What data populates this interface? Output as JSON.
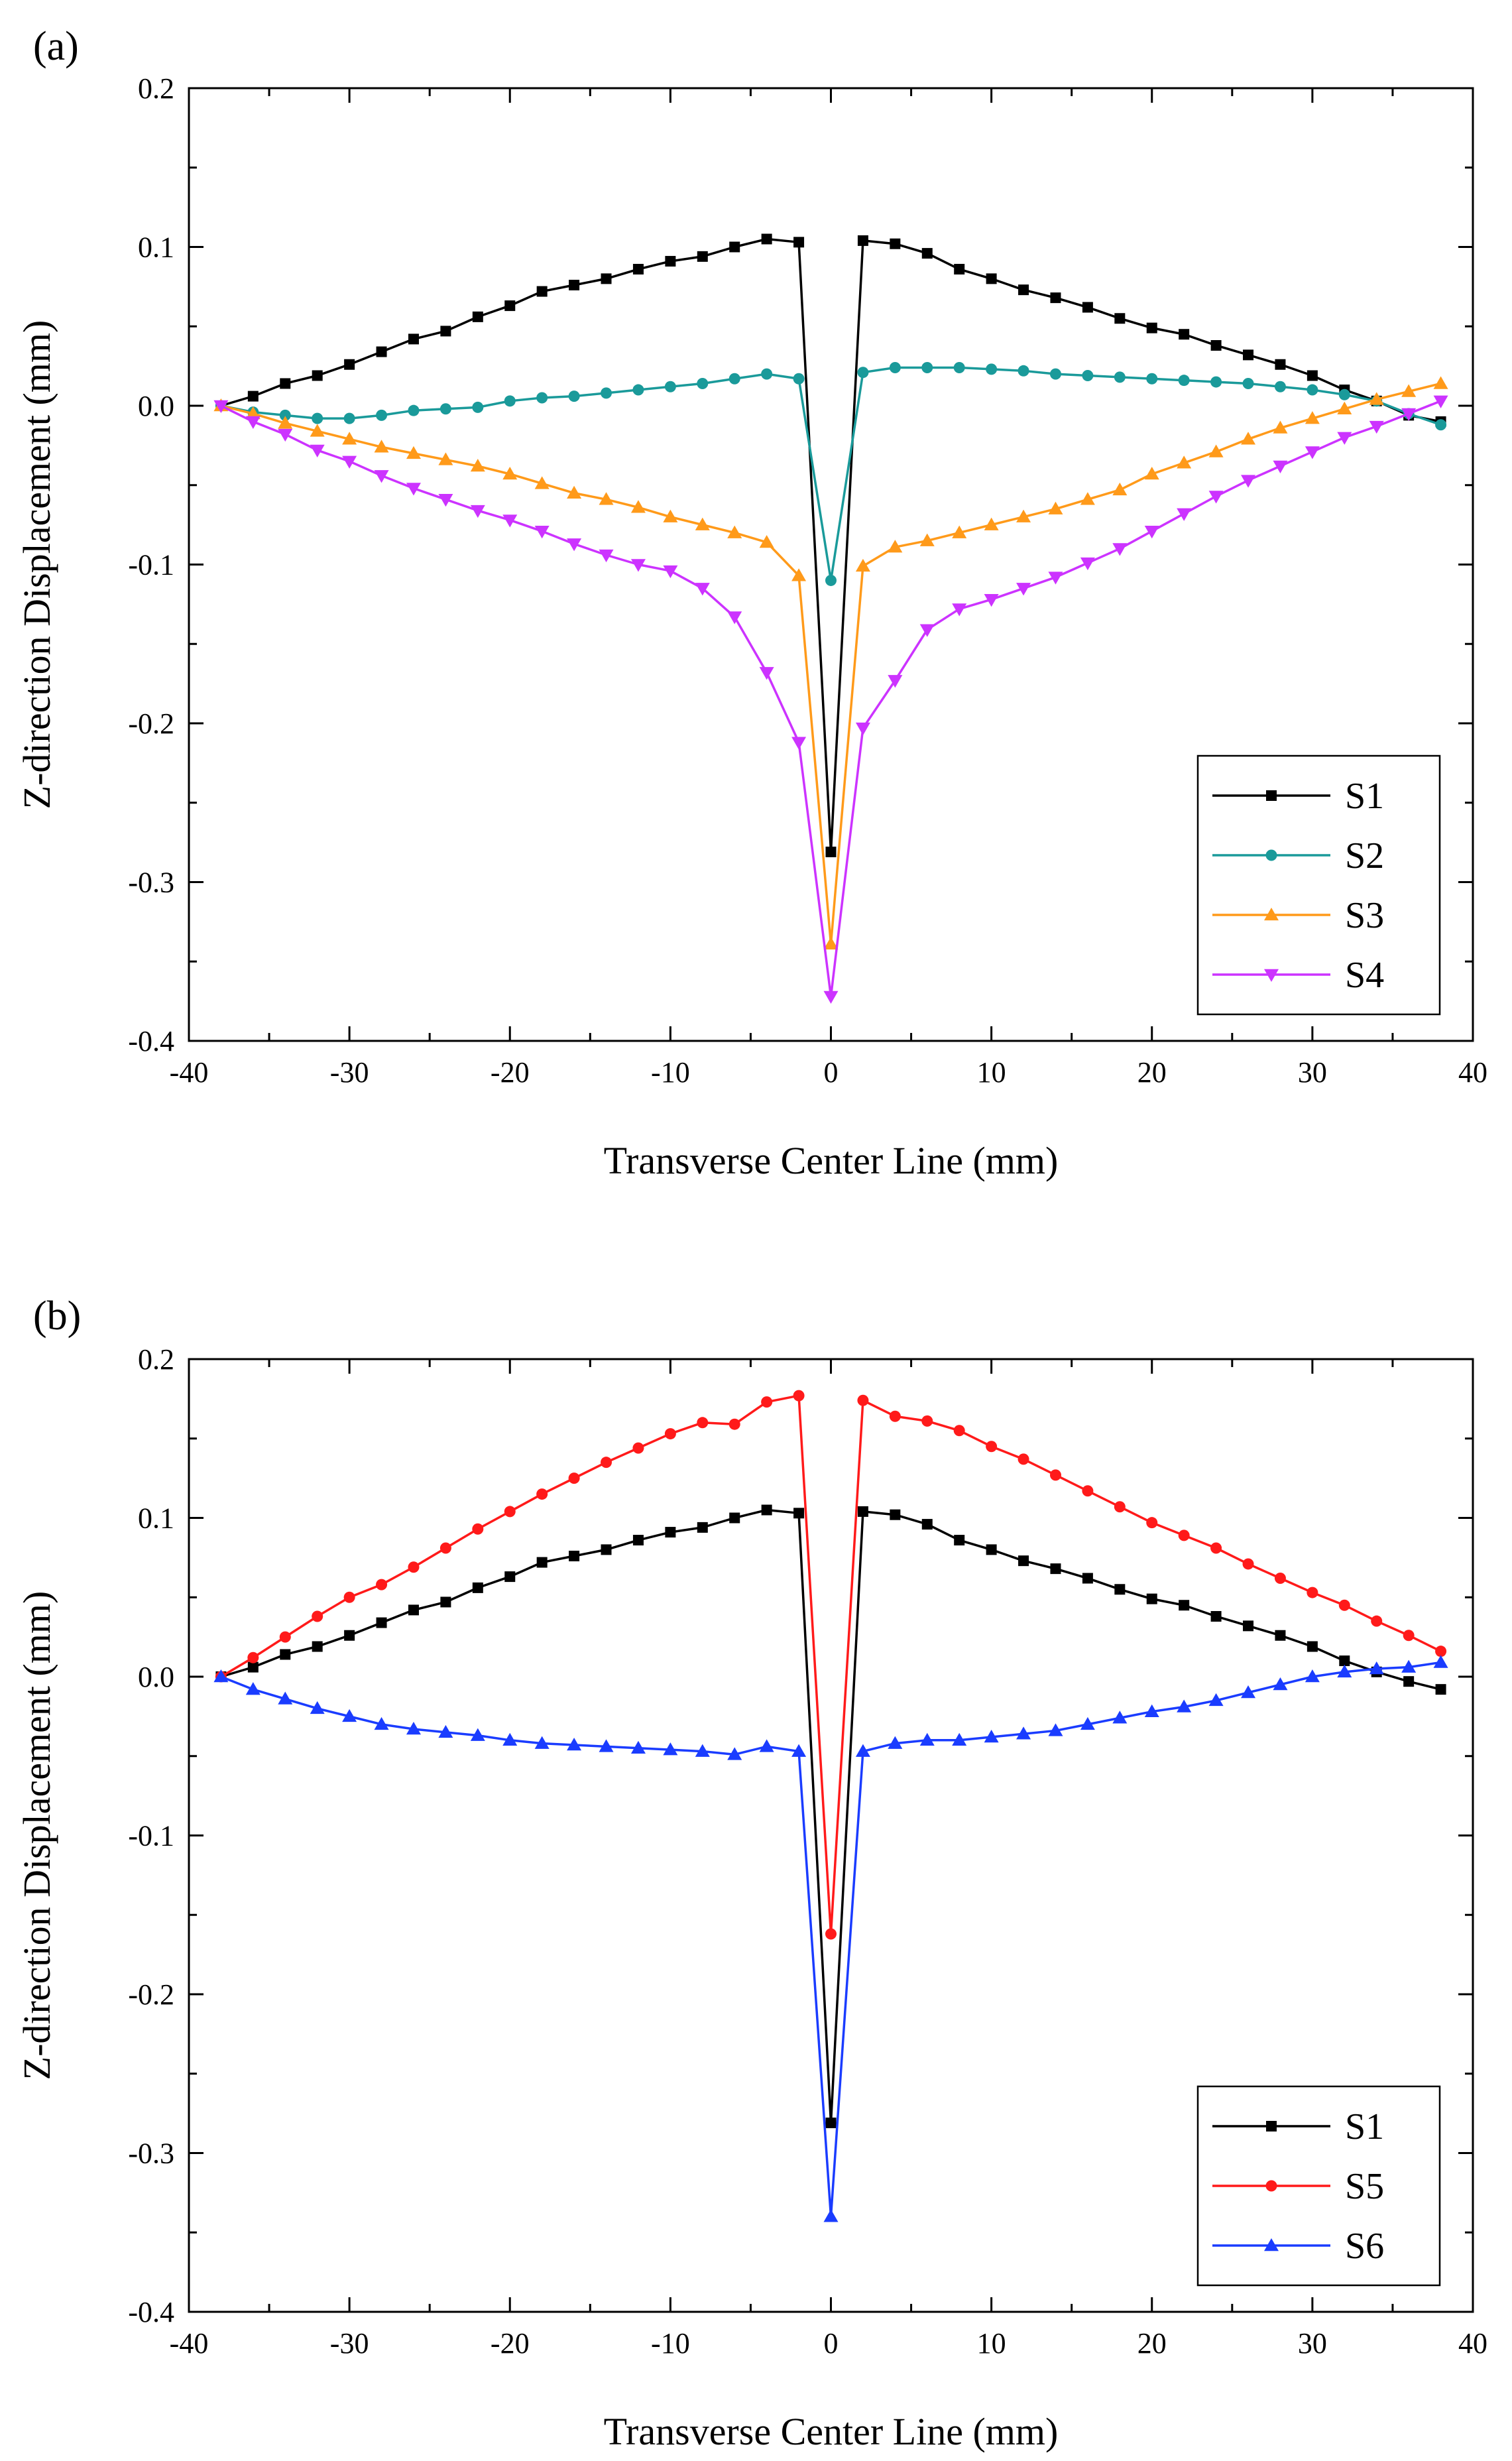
{
  "chart_data": [
    {
      "panel_label": "(a)",
      "type": "line",
      "xlabel": "Transverse Center Line (mm)",
      "ylabel": "Z-direction Displacement (mm)",
      "xlim": [
        -40,
        40
      ],
      "ylim": [
        -0.4,
        0.2
      ],
      "xticks": [
        -40,
        -30,
        -20,
        -10,
        0,
        10,
        20,
        30,
        40
      ],
      "yticks": [
        -0.4,
        -0.3,
        -0.2,
        -0.1,
        0.0,
        0.1,
        0.2
      ],
      "grid": false,
      "legend_position": "lower-right",
      "series": [
        {
          "name": "S1",
          "color": "#000000",
          "marker": "square",
          "x": [
            -38,
            -36,
            -34,
            -32,
            -30,
            -28,
            -26,
            -24,
            -22,
            -20,
            -18,
            -16,
            -14,
            -12,
            -10,
            -8,
            -6,
            -4,
            -2,
            0,
            2,
            4,
            6,
            8,
            10,
            12,
            14,
            16,
            18,
            20,
            22,
            24,
            26,
            28,
            30,
            32,
            34,
            36,
            38
          ],
          "y": [
            0.0,
            0.006,
            0.014,
            0.019,
            0.026,
            0.034,
            0.042,
            0.047,
            0.056,
            0.063,
            0.072,
            0.076,
            0.08,
            0.086,
            0.091,
            0.094,
            0.1,
            0.105,
            0.103,
            -0.281,
            0.104,
            0.102,
            0.096,
            0.086,
            0.08,
            0.073,
            0.068,
            0.062,
            0.055,
            0.049,
            0.045,
            0.038,
            0.032,
            0.026,
            0.019,
            0.01,
            0.003,
            -0.006,
            -0.01
          ]
        },
        {
          "name": "S2",
          "color": "#1a9a9a",
          "marker": "circle",
          "x": [
            -38,
            -36,
            -34,
            -32,
            -30,
            -28,
            -26,
            -24,
            -22,
            -20,
            -18,
            -16,
            -14,
            -12,
            -10,
            -8,
            -6,
            -4,
            -2,
            0,
            2,
            4,
            6,
            8,
            10,
            12,
            14,
            16,
            18,
            20,
            22,
            24,
            26,
            28,
            30,
            32,
            34,
            36,
            38
          ],
          "y": [
            0.0,
            -0.004,
            -0.006,
            -0.008,
            -0.008,
            -0.006,
            -0.003,
            -0.002,
            -0.001,
            0.003,
            0.005,
            0.006,
            0.008,
            0.01,
            0.012,
            0.014,
            0.017,
            0.02,
            0.017,
            -0.11,
            0.021,
            0.024,
            0.024,
            0.024,
            0.023,
            0.022,
            0.02,
            0.019,
            0.018,
            0.017,
            0.016,
            0.015,
            0.014,
            0.012,
            0.01,
            0.007,
            0.003,
            -0.005,
            -0.012
          ]
        },
        {
          "name": "S3",
          "color": "#ff9a1a",
          "marker": "triangle-up",
          "x": [
            -38,
            -36,
            -34,
            -32,
            -30,
            -28,
            -26,
            -24,
            -22,
            -20,
            -18,
            -16,
            -14,
            -12,
            -10,
            -8,
            -6,
            -4,
            -2,
            0,
            2,
            4,
            6,
            8,
            10,
            12,
            14,
            16,
            18,
            20,
            22,
            24,
            26,
            28,
            30,
            32,
            34,
            36,
            38
          ],
          "y": [
            0.0,
            -0.005,
            -0.011,
            -0.016,
            -0.021,
            -0.026,
            -0.03,
            -0.034,
            -0.038,
            -0.043,
            -0.049,
            -0.055,
            -0.059,
            -0.064,
            -0.07,
            -0.075,
            -0.08,
            -0.086,
            -0.107,
            -0.339,
            -0.101,
            -0.089,
            -0.085,
            -0.08,
            -0.075,
            -0.07,
            -0.065,
            -0.059,
            -0.053,
            -0.043,
            -0.036,
            -0.029,
            -0.021,
            -0.014,
            -0.008,
            -0.002,
            0.004,
            0.009,
            0.014
          ]
        },
        {
          "name": "S4",
          "color": "#cc33ff",
          "marker": "triangle-down",
          "x": [
            -38,
            -36,
            -34,
            -32,
            -30,
            -28,
            -26,
            -24,
            -22,
            -20,
            -18,
            -16,
            -14,
            -12,
            -10,
            -8,
            -6,
            -4,
            -2,
            0,
            2,
            4,
            6,
            8,
            10,
            12,
            14,
            16,
            18,
            20,
            22,
            24,
            26,
            28,
            30,
            32,
            34,
            36,
            38
          ],
          "y": [
            0.0,
            -0.01,
            -0.018,
            -0.028,
            -0.035,
            -0.044,
            -0.052,
            -0.059,
            -0.066,
            -0.072,
            -0.079,
            -0.087,
            -0.094,
            -0.1,
            -0.104,
            -0.115,
            -0.133,
            -0.168,
            -0.212,
            -0.372,
            -0.203,
            -0.173,
            -0.141,
            -0.128,
            -0.122,
            -0.115,
            -0.108,
            -0.099,
            -0.09,
            -0.079,
            -0.068,
            -0.057,
            -0.047,
            -0.038,
            -0.029,
            -0.02,
            -0.013,
            -0.005,
            0.003
          ]
        }
      ]
    },
    {
      "panel_label": "(b)",
      "type": "line",
      "xlabel": "Transverse Center Line (mm)",
      "ylabel": "Z-direction Displacement (mm)",
      "xlim": [
        -40,
        40
      ],
      "ylim": [
        -0.4,
        0.2
      ],
      "xticks": [
        -40,
        -30,
        -20,
        -10,
        0,
        10,
        20,
        30,
        40
      ],
      "yticks": [
        -0.4,
        -0.3,
        -0.2,
        -0.1,
        0.0,
        0.1,
        0.2
      ],
      "grid": false,
      "legend_position": "lower-right",
      "series": [
        {
          "name": "S1",
          "color": "#000000",
          "marker": "square",
          "x": [
            -38,
            -36,
            -34,
            -32,
            -30,
            -28,
            -26,
            -24,
            -22,
            -20,
            -18,
            -16,
            -14,
            -12,
            -10,
            -8,
            -6,
            -4,
            -2,
            0,
            2,
            4,
            6,
            8,
            10,
            12,
            14,
            16,
            18,
            20,
            22,
            24,
            26,
            28,
            30,
            32,
            34,
            36,
            38
          ],
          "y": [
            0.0,
            0.006,
            0.014,
            0.019,
            0.026,
            0.034,
            0.042,
            0.047,
            0.056,
            0.063,
            0.072,
            0.076,
            0.08,
            0.086,
            0.091,
            0.094,
            0.1,
            0.105,
            0.103,
            -0.281,
            0.104,
            0.102,
            0.096,
            0.086,
            0.08,
            0.073,
            0.068,
            0.062,
            0.055,
            0.049,
            0.045,
            0.038,
            0.032,
            0.026,
            0.019,
            0.01,
            0.003,
            -0.003,
            -0.008
          ]
        },
        {
          "name": "S5",
          "color": "#ff1a1a",
          "marker": "circle",
          "x": [
            -38,
            -36,
            -34,
            -32,
            -30,
            -28,
            -26,
            -24,
            -22,
            -20,
            -18,
            -16,
            -14,
            -12,
            -10,
            -8,
            -6,
            -4,
            -2,
            0,
            2,
            4,
            6,
            8,
            10,
            12,
            14,
            16,
            18,
            20,
            22,
            24,
            26,
            28,
            30,
            32,
            34,
            36,
            38
          ],
          "y": [
            0.0,
            0.012,
            0.025,
            0.038,
            0.05,
            0.058,
            0.069,
            0.081,
            0.093,
            0.104,
            0.115,
            0.125,
            0.135,
            0.144,
            0.153,
            0.16,
            0.159,
            0.173,
            0.177,
            -0.162,
            0.174,
            0.164,
            0.161,
            0.155,
            0.145,
            0.137,
            0.127,
            0.117,
            0.107,
            0.097,
            0.089,
            0.081,
            0.071,
            0.062,
            0.053,
            0.045,
            0.035,
            0.026,
            0.016
          ]
        },
        {
          "name": "S6",
          "color": "#1a3cff",
          "marker": "triangle-up",
          "x": [
            -38,
            -36,
            -34,
            -32,
            -30,
            -28,
            -26,
            -24,
            -22,
            -20,
            -18,
            -16,
            -14,
            -12,
            -10,
            -8,
            -6,
            -4,
            -2,
            0,
            2,
            4,
            6,
            8,
            10,
            12,
            14,
            16,
            18,
            20,
            22,
            24,
            26,
            28,
            30,
            32,
            34,
            36,
            38
          ],
          "y": [
            0.0,
            -0.008,
            -0.014,
            -0.02,
            -0.025,
            -0.03,
            -0.033,
            -0.035,
            -0.037,
            -0.04,
            -0.042,
            -0.043,
            -0.044,
            -0.045,
            -0.046,
            -0.047,
            -0.049,
            -0.044,
            -0.047,
            -0.34,
            -0.047,
            -0.042,
            -0.04,
            -0.04,
            -0.038,
            -0.036,
            -0.034,
            -0.03,
            -0.026,
            -0.022,
            -0.019,
            -0.015,
            -0.01,
            -0.005,
            0.0,
            0.003,
            0.005,
            0.006,
            0.009
          ]
        }
      ]
    }
  ]
}
